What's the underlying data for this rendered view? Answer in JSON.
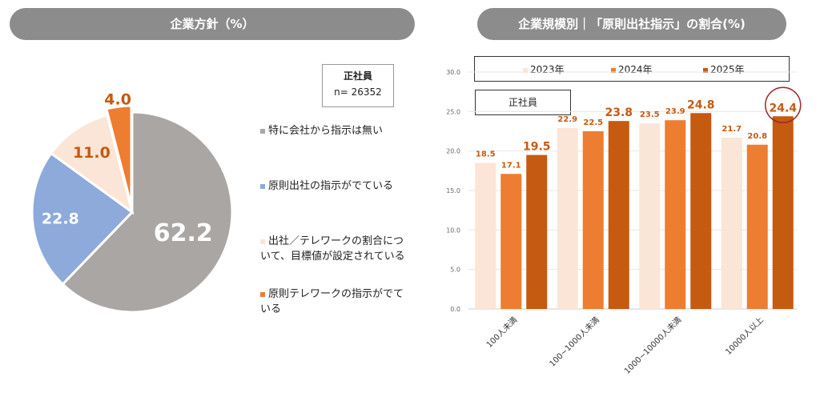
{
  "left_panel": {
    "title": "企業方針（%）",
    "box_line1": "正社員",
    "box_line2": "n= 26352"
  },
  "right_panel": {
    "title": "企業規模別｜「原則出社指示」の割合(%)",
    "box_label": "正社員"
  },
  "chart_data": [
    {
      "type": "pie",
      "title": "企業方針（%）",
      "slices": [
        {
          "label": "特に会社から指示は無い",
          "value": 62.2,
          "color": "#aaa6a4"
        },
        {
          "label": "原則出社の指示がでている",
          "value": 22.8,
          "color": "#8eaadb"
        },
        {
          "label": "出社／テレワークの割合について、目標値が設定されている",
          "value": 11.0,
          "color": "#fbe5d6"
        },
        {
          "label": "原則テレワークの指示がでている",
          "value": 4.0,
          "color": "#ed7d31"
        }
      ]
    },
    {
      "type": "bar",
      "title": "企業規模別｜「原則出社指示」の割合(%)",
      "categories": [
        "100人未満",
        "100~1000人未満",
        "1000~10000人未満",
        "10000人以上"
      ],
      "ylim": [
        0,
        30
      ],
      "yticks": [
        "0.0",
        "5.0",
        "10.0",
        "15.0",
        "20.0",
        "25.0",
        "30.0"
      ],
      "grid": true,
      "legend": "top",
      "series": [
        {
          "name": "2023年",
          "values": [
            18.5,
            22.9,
            23.5,
            21.7
          ],
          "color": "#fbe5d6"
        },
        {
          "name": "2024年",
          "values": [
            17.1,
            22.5,
            23.9,
            20.8
          ],
          "color": "#ed7d31"
        },
        {
          "name": "2025年",
          "values": [
            19.5,
            23.8,
            24.8,
            24.4
          ],
          "color": "#c55a11"
        }
      ],
      "highlight": "10000人以上 2025年 (24.4)"
    }
  ]
}
